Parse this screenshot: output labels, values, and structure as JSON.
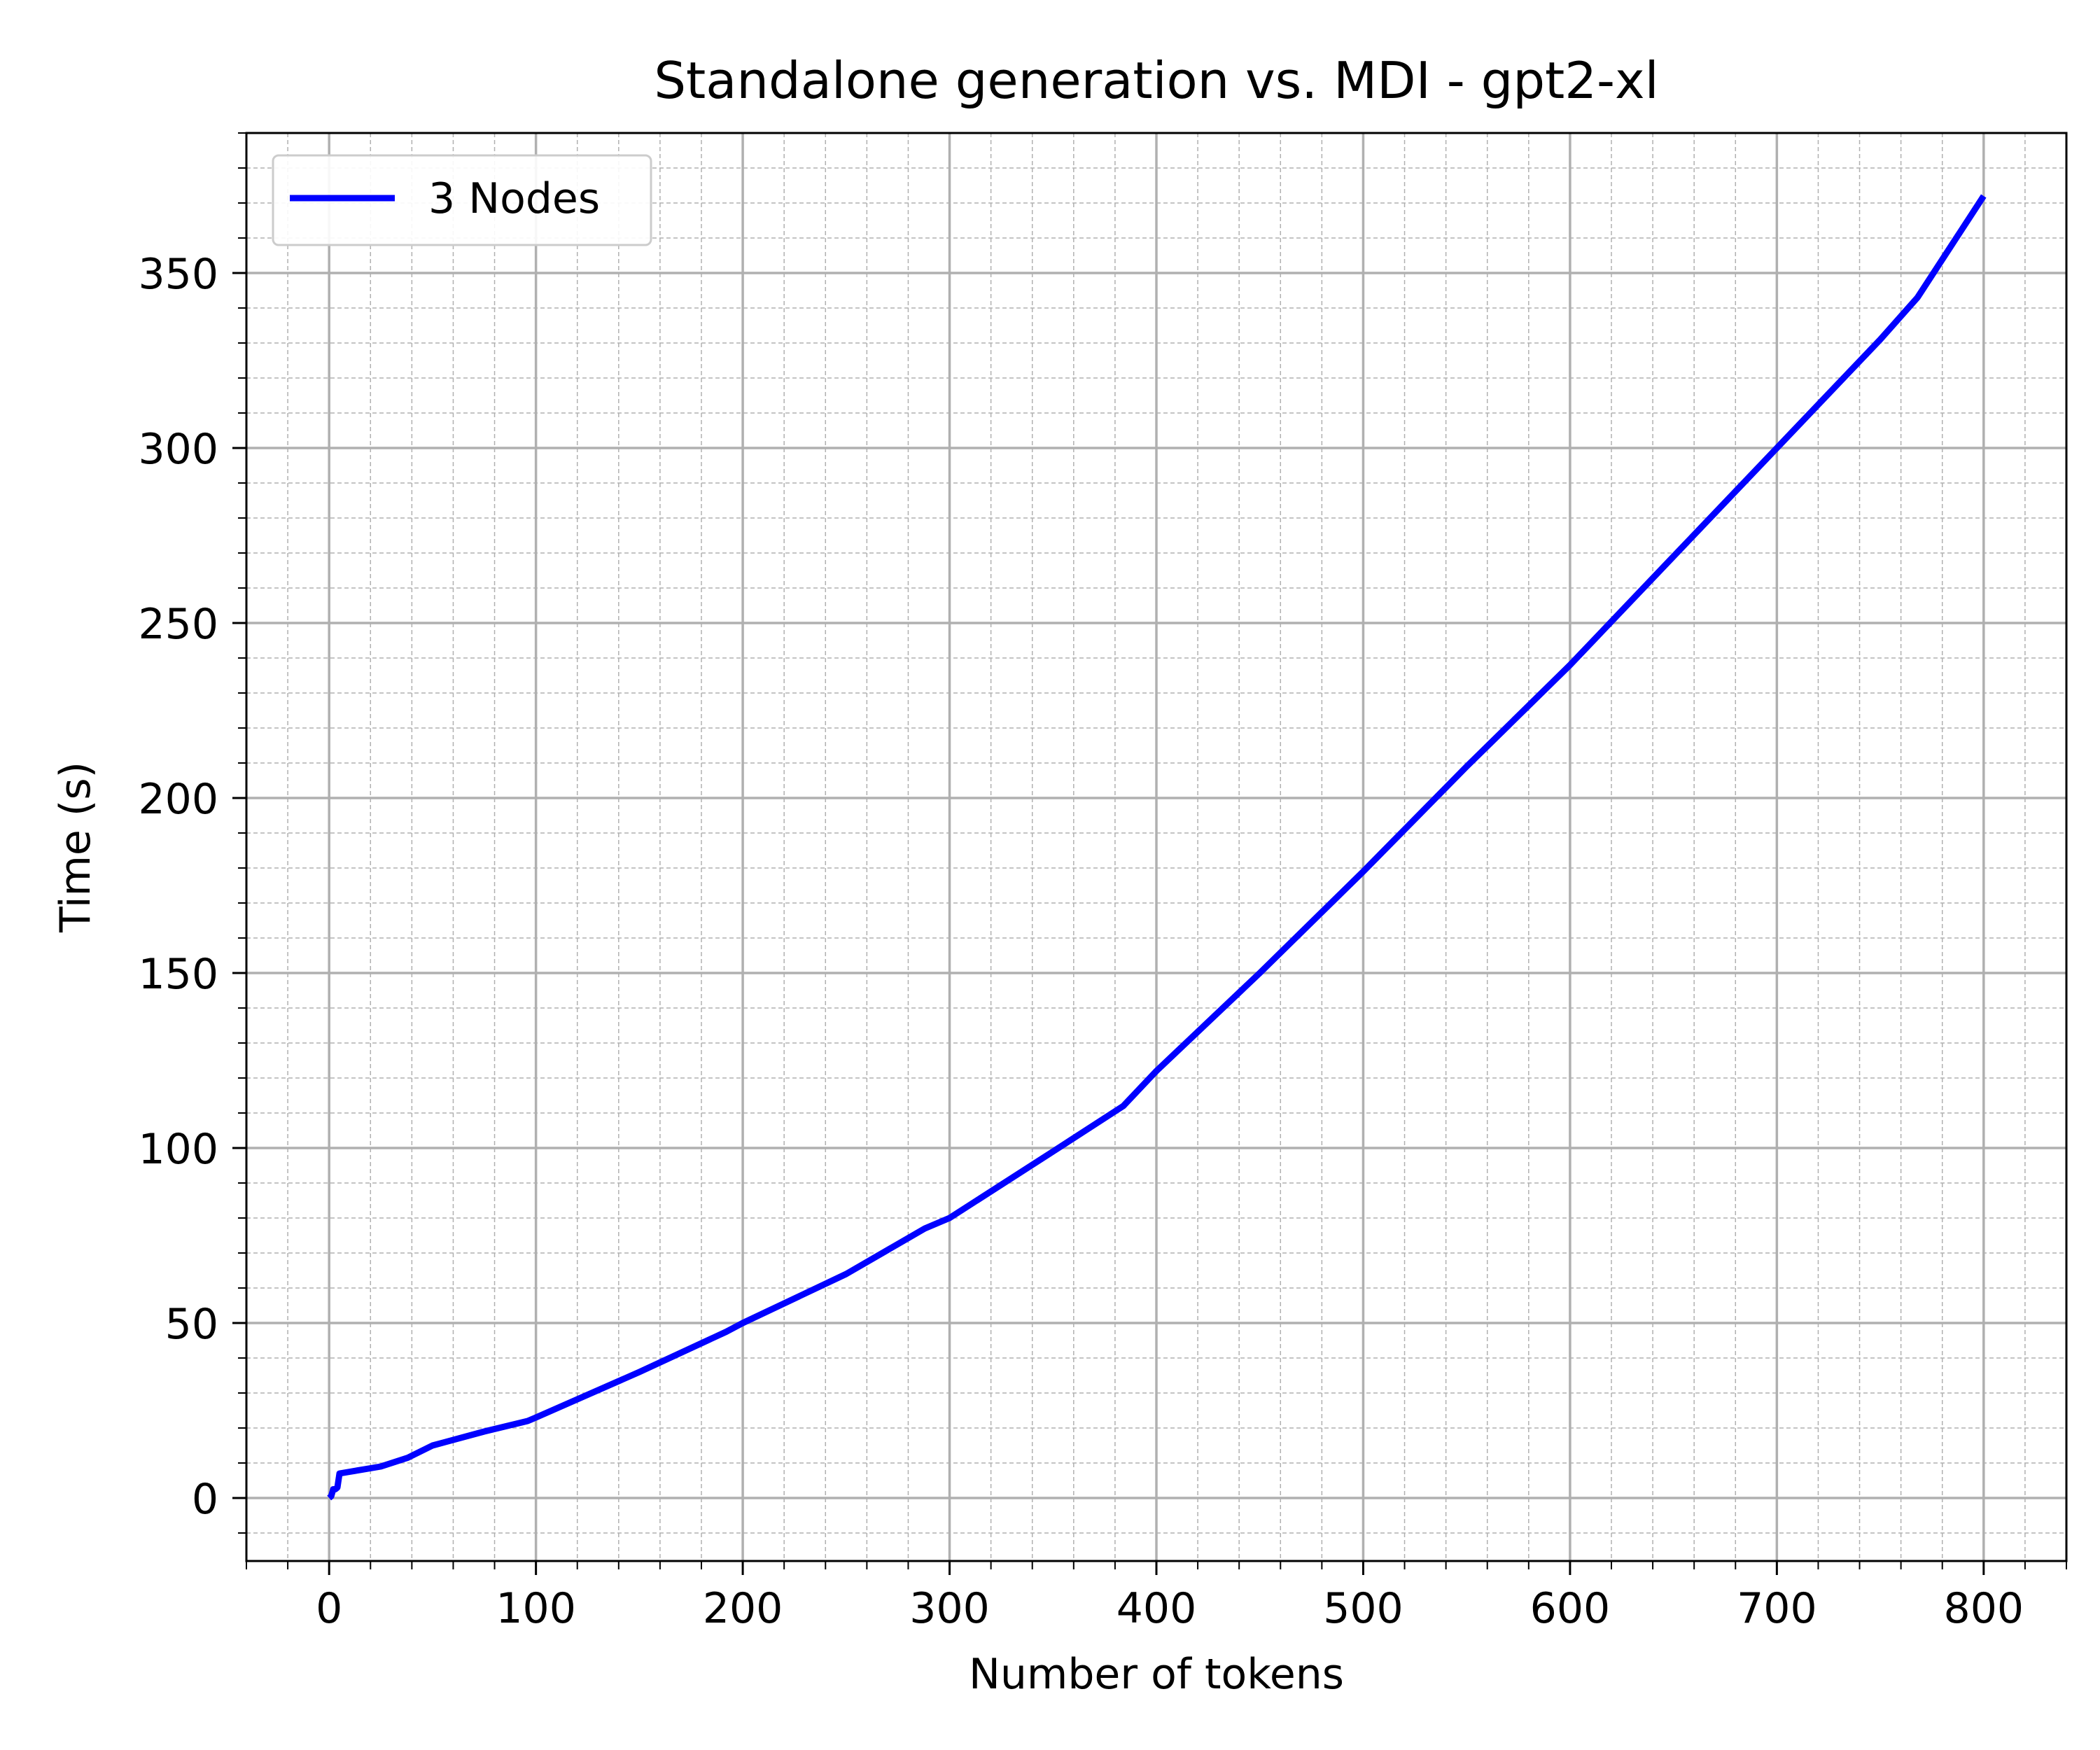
{
  "chart_data": {
    "type": "line",
    "title": "Standalone generation vs. MDI - gpt2-xl",
    "xlabel": "Number of tokens",
    "ylabel": "Time (s)",
    "xlim": [
      -40,
      840
    ],
    "ylim": [
      -18,
      390
    ],
    "x_ticks": [
      0,
      100,
      200,
      300,
      400,
      500,
      600,
      700,
      800
    ],
    "x_tick_labels": [
      "0",
      "100",
      "200",
      "300",
      "400",
      "500",
      "600",
      "700",
      "800"
    ],
    "y_ticks": [
      0,
      50,
      100,
      150,
      200,
      250,
      300,
      350
    ],
    "y_tick_labels": [
      "0",
      "50",
      "100",
      "150",
      "200",
      "250",
      "300",
      "350"
    ],
    "x_minor_step": 20,
    "y_minor_step": 10,
    "grid": true,
    "legend_position": "top-left",
    "series": [
      {
        "name": "3 Nodes",
        "color": "#0000ff",
        "x": [
          0,
          1,
          2,
          3,
          4,
          5,
          10,
          20,
          25,
          38,
          50,
          75,
          96,
          100,
          150,
          192,
          200,
          250,
          288,
          300,
          350,
          384,
          400,
          450,
          500,
          550,
          600,
          650,
          700,
          750,
          768,
          800
        ],
        "y": [
          0,
          0.5,
          2.5,
          2.5,
          3,
          7,
          7.5,
          8.5,
          9,
          11.5,
          15,
          19,
          22,
          23,
          36,
          47.5,
          50,
          64,
          77,
          80,
          99,
          112,
          122,
          150,
          179,
          209,
          238,
          269,
          300,
          331,
          343,
          372
        ]
      }
    ]
  }
}
